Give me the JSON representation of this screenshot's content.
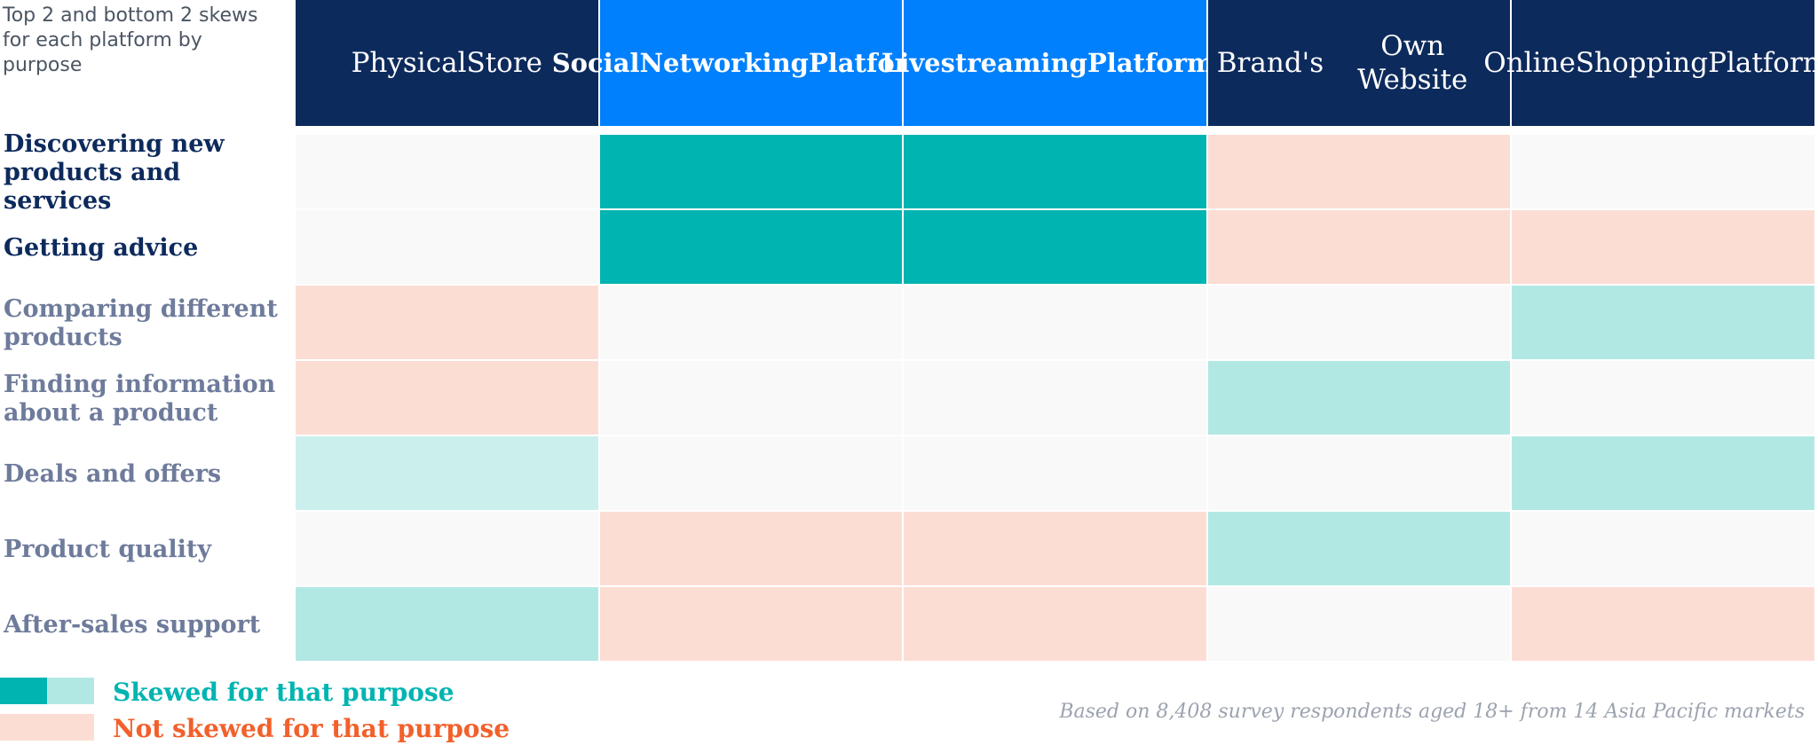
{
  "note": "Top 2 and bottom 2 skews for each platform by purpose",
  "colors": {
    "dark_navy": "#0d2a5c",
    "bright_blue": "#0080fc",
    "skew_strong": "#00b4b1",
    "skew_light": "#b2e8e4",
    "skew_lighter": "#cbefed",
    "not_skewed": "#fcddd4",
    "neutral": "#f9f9f9",
    "label_dark": "#0d2a5c",
    "label_muted": "#6e7b9b",
    "legend_teal": "#00b4b1",
    "legend_orange": "#f2602b"
  },
  "chart_data": {
    "type": "table",
    "columns": [
      {
        "lines": [
          "Physical",
          "Store"
        ],
        "style": "dark"
      },
      {
        "lines": [
          "Social",
          "Networking",
          "Platforms"
        ],
        "style": "bright"
      },
      {
        "lines": [
          "Livestreaming",
          "Platforms"
        ],
        "style": "bright"
      },
      {
        "lines": [
          "Brand's",
          "Own Website"
        ],
        "style": "dark"
      },
      {
        "lines": [
          "Online",
          "Shopping",
          "Platforms"
        ],
        "style": "dark"
      }
    ],
    "rows": [
      {
        "label": "Discovering new products and services",
        "emphasis": "dark",
        "cells": [
          "neutral",
          "skew_strong",
          "skew_strong",
          "not_skewed",
          "neutral"
        ]
      },
      {
        "label": "Getting advice",
        "emphasis": "dark",
        "cells": [
          "neutral",
          "skew_strong",
          "skew_strong",
          "not_skewed",
          "not_skewed"
        ]
      },
      {
        "label": "Comparing different products",
        "emphasis": "muted",
        "cells": [
          "not_skewed",
          "neutral",
          "neutral",
          "neutral",
          "skew_light"
        ]
      },
      {
        "label": "Finding information about a product",
        "emphasis": "muted",
        "cells": [
          "not_skewed",
          "neutral",
          "neutral",
          "skew_light",
          "neutral"
        ]
      },
      {
        "label": "Deals and offers",
        "emphasis": "muted",
        "cells": [
          "skew_lighter",
          "neutral",
          "neutral",
          "neutral",
          "skew_light"
        ]
      },
      {
        "label": "Product quality",
        "emphasis": "muted",
        "cells": [
          "neutral",
          "not_skewed",
          "not_skewed",
          "skew_light",
          "neutral"
        ]
      },
      {
        "label": "After-sales support",
        "emphasis": "muted",
        "cells": [
          "skew_light",
          "not_skewed",
          "not_skewed",
          "neutral",
          "not_skewed"
        ]
      }
    ]
  },
  "legend": {
    "skewed": "Skewed for that purpose",
    "not_skewed": "Not skewed for that purpose"
  },
  "footnote": "Based on 8,408 survey respondents aged 18+ from 14 Asia Pacific markets"
}
